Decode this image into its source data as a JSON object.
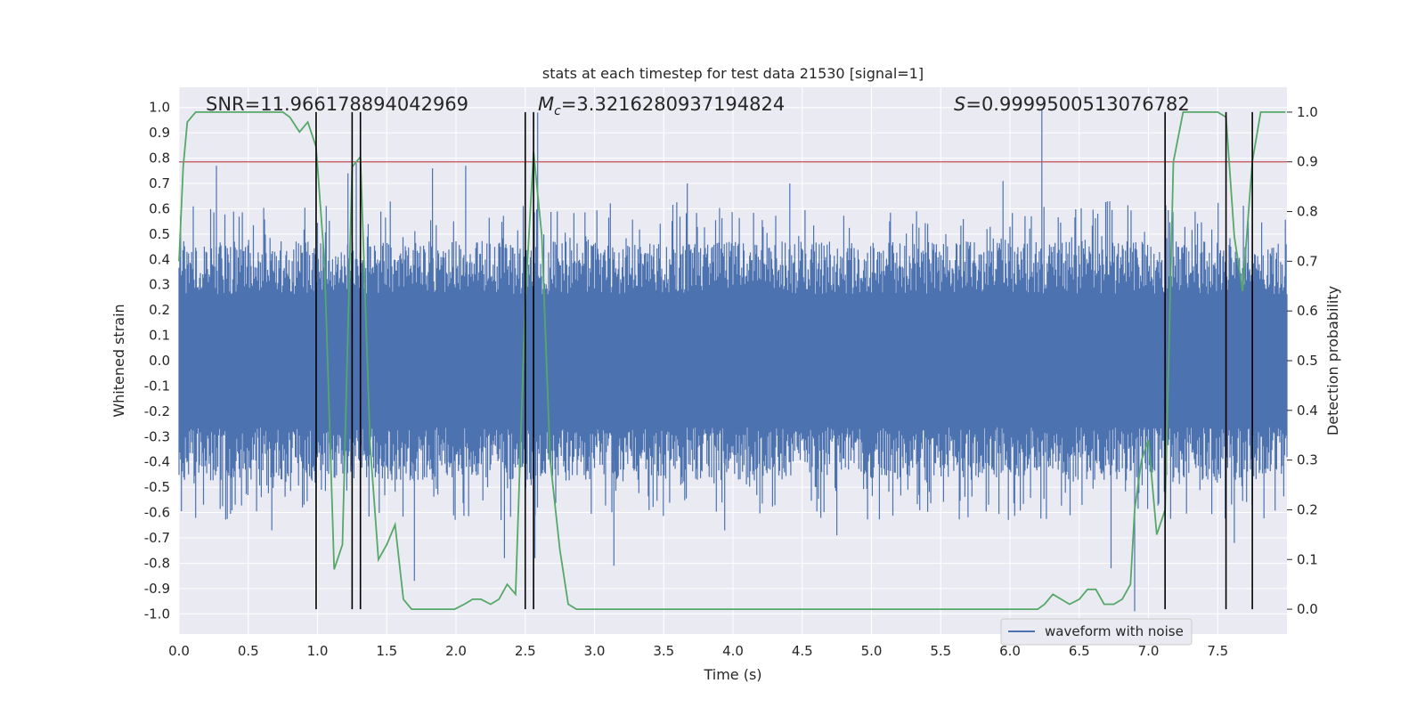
{
  "chart_data": {
    "type": "line",
    "title": "stats at each timestep for test data 21530 [signal=1]",
    "xlabel": "Time (s)",
    "ylabel_left": "Whitened strain",
    "ylabel_right": "Detection probability",
    "xlim": [
      0.0,
      8.0
    ],
    "ylim_left": [
      -1.08,
      1.08
    ],
    "ylim_right": [
      -0.05,
      1.05
    ],
    "xticks": [
      "0.0",
      "0.5",
      "1.0",
      "1.5",
      "2.0",
      "2.5",
      "3.0",
      "3.5",
      "4.0",
      "4.5",
      "5.0",
      "5.5",
      "6.0",
      "6.5",
      "7.0",
      "7.5"
    ],
    "yticks_left": [
      "-1.0",
      "-0.9",
      "-0.8",
      "-0.7",
      "-0.6",
      "-0.5",
      "-0.4",
      "-0.3",
      "-0.2",
      "-0.1",
      "0.0",
      "0.1",
      "0.2",
      "0.3",
      "0.4",
      "0.5",
      "0.6",
      "0.7",
      "0.8",
      "0.9",
      "1.0"
    ],
    "yticks_right": [
      "0.0",
      "0.1",
      "0.2",
      "0.3",
      "0.4",
      "0.5",
      "0.6",
      "0.7",
      "0.8",
      "0.9",
      "1.0"
    ],
    "grid": true,
    "legend": {
      "location": "lower center-right",
      "label": "waveform with noise"
    },
    "annotations": {
      "snr": "SNR=11.966178894042969",
      "mc_symbol": "M",
      "mc_sub": "c",
      "mc_value": "=3.3216280937194824",
      "s_symbol": "S",
      "s_value": "=0.9999500513076782"
    },
    "threshold": {
      "value": 0.9,
      "axis": "right",
      "color": "#c44e52"
    },
    "vertical_lines": {
      "x": [
        0.99,
        1.25,
        1.31,
        2.5,
        2.56,
        7.12,
        7.56,
        7.75
      ],
      "color": "#000000"
    },
    "series": [
      {
        "name": "waveform with noise",
        "axis": "left",
        "color": "#4c72b0",
        "style": "dense noise band",
        "typical_amplitude": 0.35,
        "spikes": [
          {
            "x": 0.27,
            "y": 0.77
          },
          {
            "x": 0.99,
            "y": 0.73
          },
          {
            "x": 1.22,
            "y": 0.74
          },
          {
            "x": 1.28,
            "y": 0.78
          },
          {
            "x": 2.07,
            "y": 0.77
          },
          {
            "x": 2.59,
            "y": 0.98
          },
          {
            "x": 6.23,
            "y": 0.99
          },
          {
            "x": 1.83,
            "y": 0.76
          },
          {
            "x": 5.95,
            "y": 0.71
          },
          {
            "x": 4.41,
            "y": 0.7
          },
          {
            "x": 3.67,
            "y": 0.7
          },
          {
            "x": 0.99,
            "y": -0.79
          },
          {
            "x": 1.7,
            "y": -0.87
          },
          {
            "x": 2.35,
            "y": -0.78
          },
          {
            "x": 2.57,
            "y": -0.78
          },
          {
            "x": 3.14,
            "y": -0.81
          },
          {
            "x": 6.73,
            "y": -0.82
          },
          {
            "x": 6.9,
            "y": -0.99
          },
          {
            "x": 7.62,
            "y": -0.72
          },
          {
            "x": 0.67,
            "y": -0.67
          },
          {
            "x": 4.75,
            "y": -0.69
          },
          {
            "x": 3.94,
            "y": -0.67
          }
        ]
      },
      {
        "name": "",
        "axis": "right",
        "color": "#55a868",
        "x": [
          0.0,
          0.03,
          0.06,
          0.12,
          0.2,
          0.3,
          0.4,
          0.5,
          0.6,
          0.7,
          0.75,
          0.8,
          0.87,
          0.93,
          0.99,
          1.05,
          1.12,
          1.18,
          1.25,
          1.31,
          1.38,
          1.44,
          1.5,
          1.56,
          1.62,
          1.68,
          1.75,
          1.87,
          1.99,
          2.06,
          2.12,
          2.18,
          2.25,
          2.31,
          2.37,
          2.43,
          2.5,
          2.56,
          2.62,
          2.68,
          2.75,
          2.81,
          2.87,
          2.93,
          3.0,
          3.2,
          3.4,
          3.6,
          3.8,
          4.0,
          4.1,
          4.2,
          4.4,
          4.6,
          4.8,
          5.0,
          5.2,
          5.5,
          5.7,
          5.9,
          6.1,
          6.2,
          6.25,
          6.31,
          6.37,
          6.43,
          6.5,
          6.56,
          6.62,
          6.68,
          6.75,
          6.81,
          6.87,
          6.9,
          6.95,
          7.0,
          7.06,
          7.12,
          7.18,
          7.25,
          7.31,
          7.37,
          7.43,
          7.5,
          7.56,
          7.62,
          7.68,
          7.75,
          7.81,
          7.87,
          7.93,
          7.99
        ],
        "y": [
          0.7,
          0.89,
          0.98,
          1.0,
          1.0,
          1.0,
          1.0,
          1.0,
          1.0,
          1.0,
          1.0,
          0.99,
          0.96,
          0.98,
          0.93,
          0.7,
          0.08,
          0.13,
          0.89,
          0.91,
          0.33,
          0.1,
          0.13,
          0.17,
          0.02,
          0.0,
          0.0,
          0.0,
          0.0,
          0.01,
          0.02,
          0.02,
          0.01,
          0.02,
          0.05,
          0.03,
          0.62,
          0.92,
          0.75,
          0.3,
          0.12,
          0.01,
          0.0,
          0.0,
          0.0,
          0.0,
          0.0,
          0.0,
          0.0,
          0.0,
          0.0,
          0.0,
          0.0,
          0.0,
          0.0,
          0.0,
          0.0,
          0.0,
          0.0,
          0.0,
          0.0,
          0.0,
          0.01,
          0.03,
          0.02,
          0.01,
          0.02,
          0.04,
          0.04,
          0.01,
          0.01,
          0.02,
          0.05,
          0.2,
          0.3,
          0.34,
          0.15,
          0.2,
          0.9,
          1.0,
          1.0,
          1.0,
          1.0,
          1.0,
          0.99,
          0.75,
          0.64,
          0.9,
          1.0,
          1.0,
          1.0,
          1.0
        ]
      }
    ]
  }
}
